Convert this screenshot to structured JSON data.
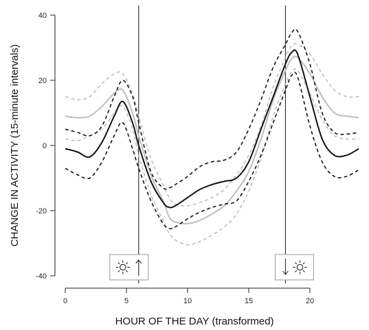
{
  "chart_data": {
    "type": "line",
    "xlabel": "HOUR OF THE DAY (transformed)",
    "ylabel": "CHANGE IN ACTIVITY (15-minute intervals)",
    "xlim": [
      0,
      24
    ],
    "ylim": [
      -42,
      42
    ],
    "xticks": [
      0,
      5,
      10,
      15,
      20
    ],
    "yticks": [
      -40,
      -20,
      0,
      20,
      40
    ],
    "grid": false,
    "legend": "none",
    "vertical_lines": [
      6,
      18
    ],
    "annotations": [
      {
        "x": 6,
        "icon": "sun-icon",
        "arrow": "up",
        "meaning": "sunrise"
      },
      {
        "x": 18,
        "icon": "sun-icon",
        "arrow": "down",
        "meaning": "sunset"
      }
    ],
    "x": [
      0,
      1,
      2,
      3,
      4,
      4.7,
      5.5,
      6,
      7,
      8,
      8.5,
      9,
      10,
      11,
      12,
      13,
      14,
      15,
      16,
      17,
      18,
      18.5,
      19,
      20,
      21,
      22,
      23,
      24
    ],
    "series": [
      {
        "style": "solid",
        "color": "#111111",
        "values": [
          -1,
          -2,
          -3.5,
          1,
          9,
          13.5,
          7,
          0,
          -11,
          -17.5,
          -19,
          -18.5,
          -16,
          -13.5,
          -12,
          -11,
          -10,
          -5,
          5,
          15,
          25,
          28.5,
          28,
          15,
          2,
          -3,
          -3,
          -1
        ]
      },
      {
        "style": "dashed",
        "color": "#111111",
        "values": [
          5,
          4,
          3,
          6,
          15,
          20,
          15,
          7,
          -8,
          -13,
          -13,
          -12,
          -9.5,
          -6.5,
          -5,
          -4.5,
          -2,
          5,
          14,
          24,
          31,
          34.5,
          35,
          25,
          10,
          4,
          3.5,
          4
        ]
      },
      {
        "style": "dashed",
        "color": "#111111",
        "values": [
          -7,
          -9,
          -10,
          -5,
          3,
          7,
          -1,
          -7,
          -17,
          -24,
          -25.5,
          -25,
          -22.5,
          -20.5,
          -19,
          -18,
          -17,
          -11,
          -3,
          7,
          17,
          21.5,
          21,
          6,
          -5,
          -9.5,
          -9.5,
          -7.5
        ]
      },
      {
        "style": "solid",
        "color": "#bdbdbd",
        "values": [
          9,
          8.5,
          9,
          12,
          16,
          17,
          10,
          3,
          -9,
          -17,
          -22,
          -23.5,
          -24,
          -23,
          -21,
          -18.5,
          -14,
          -8,
          2,
          14,
          23,
          26.5,
          27,
          22,
          15,
          10,
          9,
          8.5
        ]
      },
      {
        "style": "dashed",
        "color": "#bdbdbd",
        "values": [
          15,
          14,
          15,
          19,
          22,
          22,
          16,
          9,
          -4,
          -12,
          -16,
          -18,
          -18.5,
          -17.5,
          -16,
          -13.5,
          -9,
          -3,
          6,
          18,
          27,
          30.5,
          31,
          28,
          22,
          17,
          15,
          15
        ]
      },
      {
        "style": "dashed",
        "color": "#bdbdbd",
        "values": [
          2,
          1.5,
          3,
          5,
          10,
          12,
          5,
          -3,
          -15,
          -23,
          -27,
          -29,
          -30.5,
          -29.5,
          -27.5,
          -25,
          -21,
          -14,
          -4,
          9,
          19,
          22.5,
          23,
          16,
          8,
          3,
          2,
          2
        ]
      }
    ]
  }
}
